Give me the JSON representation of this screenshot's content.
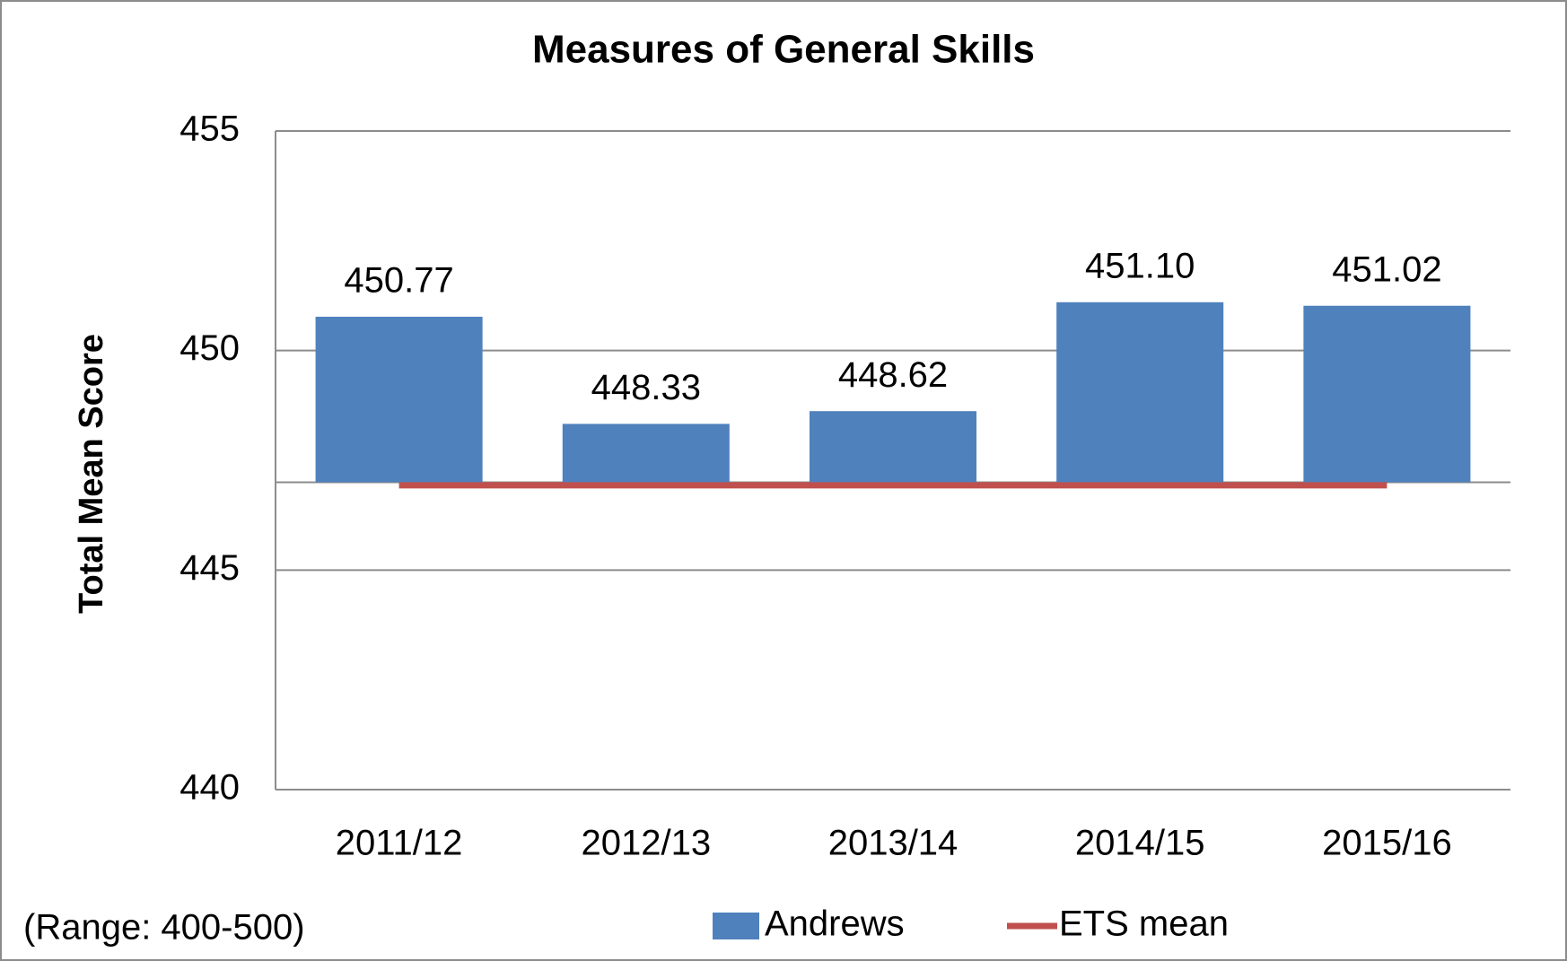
{
  "chart_data": {
    "type": "bar",
    "title": "Measures of General Skills",
    "ylabel": "Total Mean Score",
    "annotation": "(Range: 400-500)",
    "categories": [
      "2011/12",
      "2012/13",
      "2013/14",
      "2014/15",
      "2015/16"
    ],
    "series": [
      {
        "name": "Andrews",
        "type": "bar",
        "color": "#4f81bd",
        "values": [
          450.77,
          448.33,
          448.62,
          451.1,
          451.02
        ],
        "value_labels": [
          "450.77",
          "448.33",
          "448.62",
          "451.10",
          "451.02"
        ]
      },
      {
        "name": "ETS mean",
        "type": "line",
        "color": "#c0504d",
        "values": [
          446.93,
          446.93,
          446.93,
          446.93,
          446.93
        ]
      }
    ],
    "baseline": 447,
    "ylim": [
      440,
      455
    ],
    "yticks": [
      440,
      445,
      450,
      455
    ],
    "grid": true,
    "legend": "bottom"
  }
}
